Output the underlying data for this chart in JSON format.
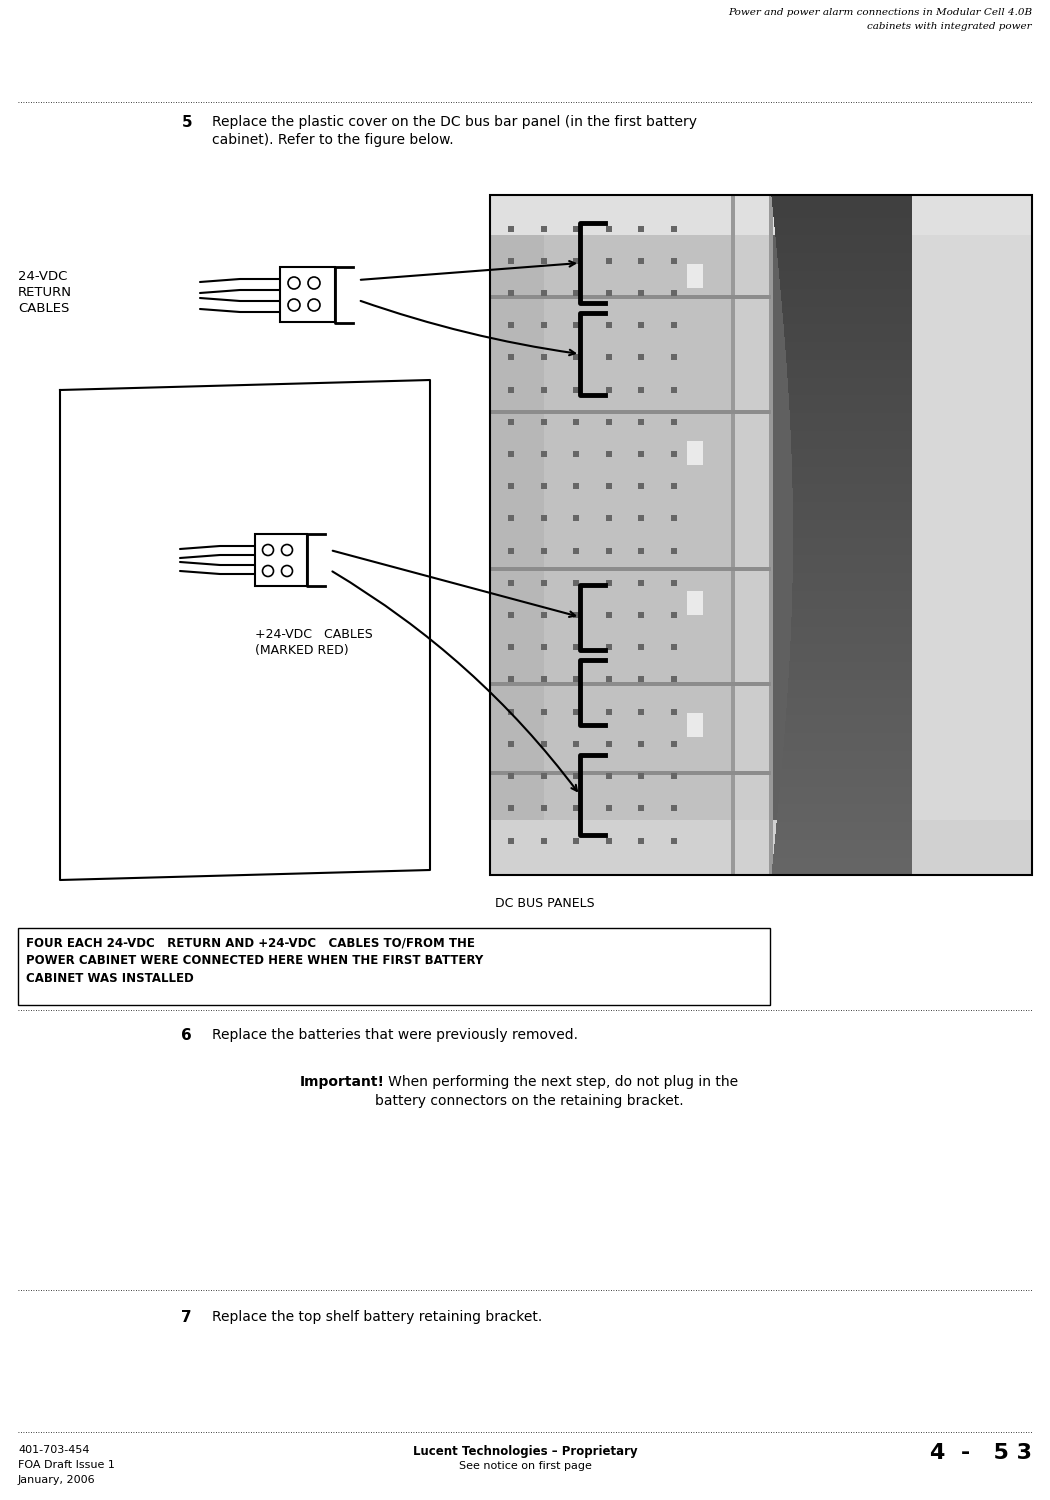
{
  "bg_color": "#ffffff",
  "header_text_line1": "Power and power alarm connections in Modular Cell 4.0B",
  "header_text_line2": "cabinets with integrated power",
  "step5_number": "5",
  "step5_text_line1": "Replace the plastic cover on the DC bus bar panel (in the first battery",
  "step5_text_line2": "cabinet). Refer to the figure below.",
  "step6_number": "6",
  "step6_text": "Replace the batteries that were previously removed.",
  "step6_important_label": "Important!",
  "step6_important_text": "   When performing the next step, do not plug in the",
  "step6_important_text2": "battery connectors on the retaining bracket.",
  "step7_number": "7",
  "step7_text": "Replace the top shelf battery retaining bracket.",
  "footer_left_line1": "401-703-454",
  "footer_left_line2": "FOA Draft Issue 1",
  "footer_left_line3": "January, 2006",
  "footer_center_line1": "Lucent Technologies – Proprietary",
  "footer_center_line2": "See notice on first page",
  "footer_right": "4  -   5 3",
  "label_24vdc_return": "24-VDC\nRETURN\nCABLES",
  "label_plus24vdc": "+24-VDC   CABLES\n(MARKED RED)",
  "label_dc_bus": "DC BUS PANELS",
  "label_four_each_1": "FOUR EACH 24-VDC   RETURN AND +24-VDC   CABLES TO/FROM THE",
  "label_four_each_2": "POWER CABINET WERE CONNECTED HERE WHEN THE FIRST BATTERY",
  "label_four_each_3": "CABINET WAS INSTALLED"
}
